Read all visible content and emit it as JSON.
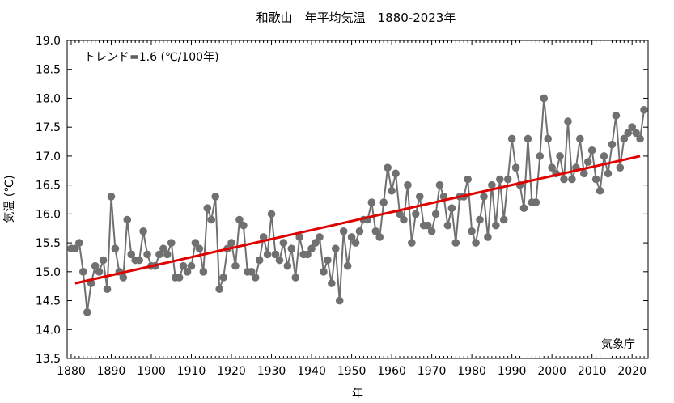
{
  "chart_data": {
    "type": "line",
    "title": "和歌山　年平均気温　1880-2023年",
    "xlabel": "年",
    "ylabel": "気温 (℃)",
    "xlim": [
      1879,
      2024
    ],
    "ylim": [
      13.5,
      19.0
    ],
    "x_ticks": [
      1880,
      1890,
      1900,
      1910,
      1920,
      1930,
      1940,
      1950,
      1960,
      1970,
      1980,
      1990,
      2000,
      2010,
      2020
    ],
    "y_ticks": [
      "13.5",
      "14.0",
      "14.5",
      "15.0",
      "15.5",
      "16.0",
      "16.5",
      "17.0",
      "17.5",
      "18.0",
      "18.5",
      "19.0"
    ],
    "trend_label": "トレンド=1.6 (℃/100年)",
    "source_label": "気象庁",
    "grid": false,
    "colors": {
      "series": "#707070",
      "trend": "#e00000"
    },
    "x": [
      1880,
      1881,
      1882,
      1883,
      1884,
      1885,
      1886,
      1887,
      1888,
      1889,
      1890,
      1891,
      1892,
      1893,
      1894,
      1895,
      1896,
      1897,
      1898,
      1899,
      1900,
      1901,
      1902,
      1903,
      1904,
      1905,
      1906,
      1907,
      1908,
      1909,
      1910,
      1911,
      1912,
      1913,
      1914,
      1915,
      1916,
      1917,
      1918,
      1919,
      1920,
      1921,
      1922,
      1923,
      1924,
      1925,
      1926,
      1927,
      1928,
      1929,
      1930,
      1931,
      1932,
      1933,
      1934,
      1935,
      1936,
      1937,
      1938,
      1939,
      1940,
      1941,
      1942,
      1943,
      1944,
      1945,
      1946,
      1947,
      1948,
      1949,
      1950,
      1951,
      1952,
      1953,
      1954,
      1955,
      1956,
      1957,
      1958,
      1959,
      1960,
      1961,
      1962,
      1963,
      1964,
      1965,
      1966,
      1967,
      1968,
      1969,
      1970,
      1971,
      1972,
      1973,
      1974,
      1975,
      1976,
      1977,
      1978,
      1979,
      1980,
      1981,
      1982,
      1983,
      1984,
      1985,
      1986,
      1987,
      1988,
      1989,
      1990,
      1991,
      1992,
      1993,
      1994,
      1995,
      1996,
      1997,
      1998,
      1999,
      2000,
      2001,
      2002,
      2003,
      2004,
      2005,
      2006,
      2007,
      2008,
      2009,
      2010,
      2011,
      2012,
      2013,
      2014,
      2015,
      2016,
      2017,
      2018,
      2019,
      2020,
      2021,
      2022,
      2023
    ],
    "series": [
      {
        "values": [
          15.4,
          15.4,
          15.5,
          15.0,
          14.3,
          14.8,
          15.1,
          15.0,
          15.2,
          14.7,
          16.3,
          15.4,
          15.0,
          14.9,
          15.9,
          15.3,
          15.2,
          15.2,
          15.7,
          15.3,
          15.1,
          15.1,
          15.3,
          15.4,
          15.3,
          15.5,
          14.9,
          14.9,
          15.1,
          15.0,
          15.1,
          15.5,
          15.4,
          15.0,
          16.1,
          15.9,
          16.3,
          14.7,
          14.9,
          15.4,
          15.5,
          15.1,
          15.9,
          15.8,
          15.0,
          15.0,
          14.9,
          15.2,
          15.6,
          15.3,
          16.0,
          15.3,
          15.2,
          15.5,
          15.1,
          15.4,
          14.9,
          15.6,
          15.3,
          15.3,
          15.4,
          15.5,
          15.6,
          15.0,
          15.2,
          14.8,
          15.4,
          14.5,
          15.7,
          15.1,
          15.6,
          15.5,
          15.7,
          15.9,
          15.9,
          16.2,
          15.7,
          15.6,
          16.2,
          16.8,
          16.4,
          16.7,
          16.0,
          15.9,
          16.5,
          15.5,
          16.0,
          16.3,
          15.8,
          15.8,
          15.7,
          16.0,
          16.5,
          16.3,
          15.8,
          16.1,
          15.5,
          16.3,
          16.3,
          16.6,
          15.7,
          15.5,
          15.9,
          16.3,
          15.6,
          16.5,
          15.8,
          16.6,
          15.9,
          16.6,
          17.3,
          16.8,
          16.5,
          16.1,
          17.3,
          16.2,
          16.2,
          17.0,
          18.0,
          17.3,
          16.8,
          16.7,
          17.0,
          16.6,
          17.6,
          16.6,
          16.8,
          17.3,
          16.7,
          16.9,
          17.1,
          16.6,
          16.4,
          17.0,
          16.7,
          17.2,
          17.7,
          16.8,
          17.3,
          17.4,
          17.5,
          17.4,
          17.3,
          17.8
        ]
      }
    ],
    "trend": {
      "x": [
        1881,
        2022
      ],
      "y": [
        14.8,
        17.0
      ]
    }
  }
}
